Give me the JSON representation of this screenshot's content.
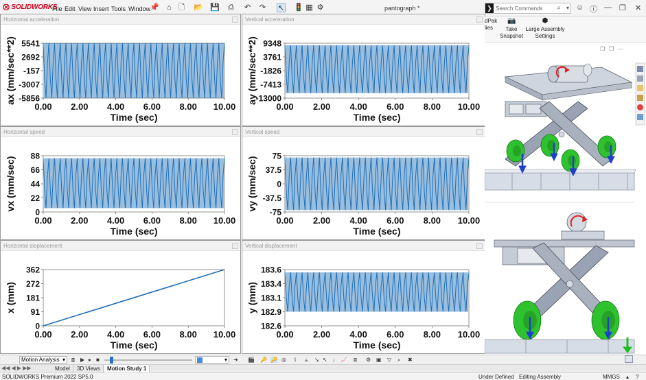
{
  "app": {
    "logo": "SOLIDWORKS",
    "menu": [
      "File",
      "Edit",
      "View",
      "Insert",
      "Tools",
      "Window"
    ],
    "doc_title": "pantograph *",
    "search_placeholder": "Search Commands"
  },
  "ribbon": {
    "partial_left": "dPak\nlies",
    "take_snapshot": "Take\nSnapshot",
    "large_assembly": "Large Assembly\nSettings"
  },
  "panels": [
    {
      "title": "Horizontal acceleration"
    },
    {
      "title": "Vertical acceleration"
    },
    {
      "title": "Horizontal speed"
    },
    {
      "title": "Vertical speed"
    },
    {
      "title": "Horizontal displacement"
    },
    {
      "title": "Vertical displacement"
    }
  ],
  "chart_data": [
    {
      "type": "line",
      "xlabel": "Time (sec)",
      "ylabel": "ax (mm/sec**2)",
      "xlim": [
        0,
        10
      ],
      "ylim": [
        -5856,
        5541
      ],
      "xticks": [
        "0.00",
        "2.00",
        "4.00",
        "6.00",
        "8.00",
        "10.00"
      ],
      "yticks": [
        "5541",
        "2692",
        "-157",
        "-3007",
        "-5856"
      ],
      "series": [
        {
          "color": "#1f6fb5",
          "pattern": "oscillation",
          "cycles": 32,
          "min": -5856,
          "max": 5541
        }
      ]
    },
    {
      "type": "line",
      "xlabel": "Time (sec)",
      "ylabel": "ay (mm/sec**2)",
      "xlim": [
        0,
        10
      ],
      "ylim": [
        -13000,
        9348
      ],
      "xticks": [
        "0.00",
        "2.00",
        "4.00",
        "6.00",
        "8.00",
        "10.00"
      ],
      "yticks": [
        "9348",
        "3761",
        "-1826",
        "-7413",
        "-13000"
      ],
      "series": [
        {
          "color": "#1f6fb5",
          "pattern": "oscillation",
          "cycles": 32,
          "min": -11000,
          "max": 8500
        }
      ]
    },
    {
      "type": "line",
      "xlabel": "Time (sec)",
      "ylabel": "vx (mm/sec)",
      "xlim": [
        0,
        10
      ],
      "ylim": [
        0,
        88
      ],
      "xticks": [
        "0.00",
        "2.00",
        "4.00",
        "6.00",
        "8.00",
        "10.00"
      ],
      "yticks": [
        "88",
        "66",
        "44",
        "22",
        "0"
      ],
      "series": [
        {
          "color": "#1f6fb5",
          "pattern": "oscillation",
          "cycles": 32,
          "min": 6,
          "max": 84
        }
      ]
    },
    {
      "type": "line",
      "xlabel": "Time (sec)",
      "ylabel": "vy (mm/sec)",
      "xlim": [
        0,
        10
      ],
      "ylim": [
        -75,
        75
      ],
      "xticks": [
        "0.00",
        "2.00",
        "4.00",
        "6.00",
        "8.00",
        "10.00"
      ],
      "yticks": [
        "75",
        "37.5",
        "0",
        "-37.5",
        "-75"
      ],
      "series": [
        {
          "color": "#1f6fb5",
          "pattern": "oscillation",
          "cycles": 32,
          "min": -70,
          "max": 70
        }
      ]
    },
    {
      "type": "line",
      "xlabel": "Time (sec)",
      "ylabel": "x (mm)",
      "xlim": [
        0,
        10
      ],
      "ylim": [
        0,
        362
      ],
      "xticks": [
        "0.00",
        "2.00",
        "4.00",
        "6.00",
        "8.00",
        "10.00"
      ],
      "yticks": [
        "362",
        "272",
        "181",
        "91",
        "0"
      ],
      "series": [
        {
          "color": "#1f6fb5",
          "pattern": "linear",
          "x": [
            0,
            10
          ],
          "y": [
            0,
            362
          ]
        }
      ]
    },
    {
      "type": "line",
      "xlabel": "Time (sec)",
      "ylabel": "y (mm)",
      "xlim": [
        0,
        10
      ],
      "ylim": [
        182.6,
        183.6
      ],
      "xticks": [
        "0.00",
        "2.00",
        "4.00",
        "6.00",
        "8.00",
        "10.00"
      ],
      "yticks": [
        "183.6",
        "183.4",
        "183.1",
        "182.9",
        "182.6"
      ],
      "series": [
        {
          "color": "#1f6fb5",
          "pattern": "oscillation",
          "cycles": 32,
          "min": 182.85,
          "max": 183.55
        }
      ]
    }
  ],
  "motion_bar": {
    "study_type": "Motion Analysis"
  },
  "tabs": [
    {
      "label": "Model",
      "active": false
    },
    {
      "label": "3D Views",
      "active": false
    },
    {
      "label": "Motion Study 1",
      "active": true
    }
  ],
  "status": {
    "product": "SOLIDWORKS Premium 2022 SP5.0",
    "state": "Under Defined",
    "mode": "Editing Assembly",
    "units": "MMGS"
  },
  "colors": {
    "plot_line": "#1f6fb5",
    "wheel_green": "#2fc22f",
    "arrow_blue": "#1f3fcc",
    "part_gray": "#9aa3b3",
    "logo_red": "#d0021b"
  }
}
